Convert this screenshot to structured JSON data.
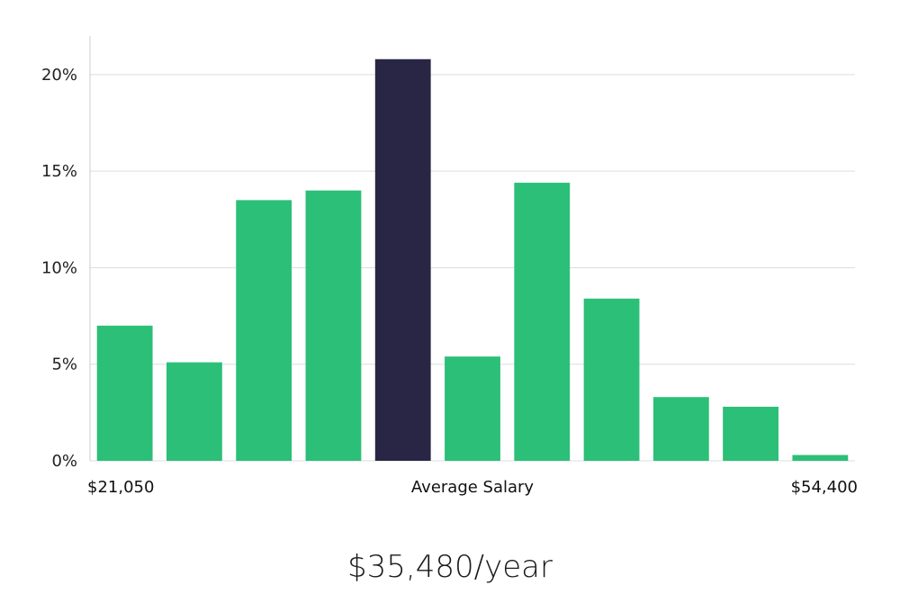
{
  "chart_data": {
    "type": "bar",
    "values": [
      7.0,
      5.1,
      13.5,
      14.0,
      20.8,
      5.4,
      14.4,
      8.4,
      3.3,
      2.8,
      0.3
    ],
    "highlight_index": 4,
    "ylim": [
      0,
      22
    ],
    "yticks": [
      {
        "value": 0,
        "label": "0%"
      },
      {
        "value": 5,
        "label": "5%"
      },
      {
        "value": 10,
        "label": "10%"
      },
      {
        "value": 15,
        "label": "15%"
      },
      {
        "value": 20,
        "label": "20%"
      }
    ],
    "grid": true,
    "x_min_label": "$21,050",
    "x_center_label": "Average Salary",
    "x_max_label": "$54,400",
    "colors": {
      "bar": "#2bbf78",
      "highlight": "#282644",
      "grid": "#dddddd",
      "axis": "#cccccc"
    }
  },
  "summary": {
    "average_salary": "$35,480/year"
  }
}
